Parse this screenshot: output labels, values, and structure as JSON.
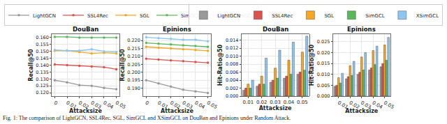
{
  "chart_data": [
    {
      "type": "line",
      "title": "DouBan",
      "x_label": "Attacksize",
      "y_label": "Recall@50",
      "x": [
        0,
        0.01,
        0.02,
        0.03,
        0.04,
        0.05
      ],
      "xlim": [
        -0.0025,
        0.0525
      ],
      "xticks": [
        0,
        0.01,
        0.02,
        0.03,
        0.04,
        0.05
      ],
      "ylim": [
        0.1175,
        0.1625
      ],
      "yticks": [
        {
          "value": 0.12,
          "label": "0.120"
        },
        {
          "value": 0.125,
          "label": "0.125"
        },
        {
          "value": 0.13,
          "label": "0.130"
        },
        {
          "value": 0.135,
          "label": "0.135"
        },
        {
          "value": 0.14,
          "label": "0.140"
        },
        {
          "value": 0.145,
          "label": "0.145"
        },
        {
          "value": 0.15,
          "label": "0.150"
        },
        {
          "value": 0.155,
          "label": "0.155"
        },
        {
          "value": 0.16,
          "label": "0.160"
        }
      ],
      "grid": true,
      "legend": "top",
      "marker": "circle",
      "series": [
        {
          "name": "LightGCN",
          "color": "#999999",
          "values": [
            0.129,
            0.1275,
            0.1255,
            0.125,
            0.1235,
            0.1225
          ]
        },
        {
          "name": "SSL4Rec",
          "color": "#d9534f",
          "values": [
            0.1405,
            0.14,
            0.1395,
            0.139,
            0.1385,
            0.137
          ]
        },
        {
          "name": "SGL",
          "color": "#f5a623",
          "values": [
            0.1505,
            0.1505,
            0.1495,
            0.1485,
            0.149,
            0.1485
          ]
        },
        {
          "name": "SimGCL",
          "color": "#5cb85c",
          "values": [
            0.1605,
            0.1605,
            0.16,
            0.16,
            0.16,
            0.16
          ]
        },
        {
          "name": "XSimGCL",
          "color": "#8dc6f0",
          "values": [
            0.151,
            0.1505,
            0.1505,
            0.1515,
            0.15,
            0.1495
          ]
        }
      ]
    },
    {
      "type": "line",
      "title": "Epinions",
      "x_label": "Attacksize",
      "y_label": "Recall@50",
      "x": [
        0,
        0.01,
        0.02,
        0.03,
        0.04,
        0.05
      ],
      "xlim": [
        -0.0025,
        0.0525
      ],
      "xticks": [
        0,
        0.01,
        0.02,
        0.03,
        0.04,
        0.05
      ],
      "ylim": [
        0.185,
        0.224
      ],
      "yticks": [
        {
          "value": 0.19,
          "label": "0.190"
        },
        {
          "value": 0.195,
          "label": "0.195"
        },
        {
          "value": 0.2,
          "label": "0.200"
        },
        {
          "value": 0.205,
          "label": "0.205"
        },
        {
          "value": 0.21,
          "label": "0.210"
        },
        {
          "value": 0.215,
          "label": "0.215"
        },
        {
          "value": 0.22,
          "label": "0.220"
        }
      ],
      "grid": true,
      "marker": "circle",
      "series": [
        {
          "name": "LightGCN",
          "color": "#999999",
          "values": [
            0.195,
            0.193,
            0.191,
            0.189,
            0.188,
            0.187
          ]
        },
        {
          "name": "SSL4Rec",
          "color": "#d9534f",
          "values": [
            0.2085,
            0.208,
            0.2075,
            0.207,
            0.2065,
            0.206
          ]
        },
        {
          "name": "SGL",
          "color": "#f5a623",
          "values": [
            0.216,
            0.2155,
            0.215,
            0.2145,
            0.214,
            0.2135
          ]
        },
        {
          "name": "SimGCL",
          "color": "#5cb85c",
          "values": [
            0.2185,
            0.218,
            0.2175,
            0.217,
            0.2165,
            0.216
          ]
        },
        {
          "name": "XSimGCL",
          "color": "#8dc6f0",
          "values": [
            0.222,
            0.2215,
            0.221,
            0.2205,
            0.2205,
            0.2195
          ]
        }
      ]
    },
    {
      "type": "bar",
      "title": "DouBan",
      "x_label": "Attacksize",
      "y_label": "Hit-Ratio@50",
      "categories": [
        "0.01",
        "0.02",
        "0.03",
        "0.04",
        "0.05"
      ],
      "ylim": [
        0,
        0.0155
      ],
      "yticks": [
        {
          "value": 0,
          "label": "0.000"
        },
        {
          "value": 0.002,
          "label": "0.002"
        },
        {
          "value": 0.004,
          "label": "0.004"
        },
        {
          "value": 0.006,
          "label": "0.006"
        },
        {
          "value": 0.008,
          "label": "0.008"
        },
        {
          "value": 0.01,
          "label": "0.010"
        },
        {
          "value": 0.012,
          "label": "0.012"
        },
        {
          "value": 0.014,
          "label": "0.014"
        }
      ],
      "grid": true,
      "legend": "top",
      "series": [
        {
          "name": "LightGCN",
          "color": "#999999",
          "values": [
            0.0015,
            0.0025,
            0.0035,
            0.0045,
            0.0055
          ]
        },
        {
          "name": "SSL4Rec",
          "color": "#d9534f",
          "values": [
            0.002,
            0.003,
            0.004,
            0.005,
            0.006
          ]
        },
        {
          "name": "SGL",
          "color": "#f5a623",
          "values": [
            0.003,
            0.005,
            0.007,
            0.009,
            0.011
          ]
        },
        {
          "name": "SimGCL",
          "color": "#5cb85c",
          "values": [
            0.002,
            0.003,
            0.0045,
            0.0055,
            0.0065
          ]
        },
        {
          "name": "XSimGCL",
          "color": "#8dc6f0",
          "values": [
            0.004,
            0.0095,
            0.0115,
            0.0135,
            0.015
          ]
        }
      ]
    },
    {
      "type": "bar",
      "title": "Epinions",
      "x_label": "Attacksize",
      "y_label": "Hit-Ratio@50",
      "categories": [
        "0.01",
        "0.02",
        "0.03",
        "0.04",
        "0.05"
      ],
      "ylim": [
        0,
        0.0285
      ],
      "yticks": [
        {
          "value": 0,
          "label": "0.000"
        },
        {
          "value": 0.005,
          "label": "0.005"
        },
        {
          "value": 0.01,
          "label": "0.010"
        },
        {
          "value": 0.015,
          "label": "0.015"
        },
        {
          "value": 0.02,
          "label": "0.020"
        },
        {
          "value": 0.025,
          "label": "0.025"
        }
      ],
      "grid": true,
      "series": [
        {
          "name": "LightGCN",
          "color": "#999999",
          "values": [
            0.0045,
            0.008,
            0.01,
            0.012,
            0.0135
          ]
        },
        {
          "name": "SSL4Rec",
          "color": "#d9534f",
          "values": [
            0.005,
            0.009,
            0.011,
            0.013,
            0.015
          ]
        },
        {
          "name": "SGL",
          "color": "#f5a623",
          "values": [
            0.0085,
            0.014,
            0.018,
            0.021,
            0.0235
          ]
        },
        {
          "name": "SimGCL",
          "color": "#5cb85c",
          "values": [
            0.006,
            0.0095,
            0.012,
            0.0145,
            0.0165
          ]
        },
        {
          "name": "XSimGCL",
          "color": "#8dc6f0",
          "values": [
            0.0105,
            0.016,
            0.02,
            0.023,
            0.027
          ]
        }
      ]
    }
  ],
  "caption": "Fig. 1: The comparison of LightGCN, SSL4Rec, SGL, SimGCL and XSimGCL on DouBan and Epinions under Random Attack."
}
